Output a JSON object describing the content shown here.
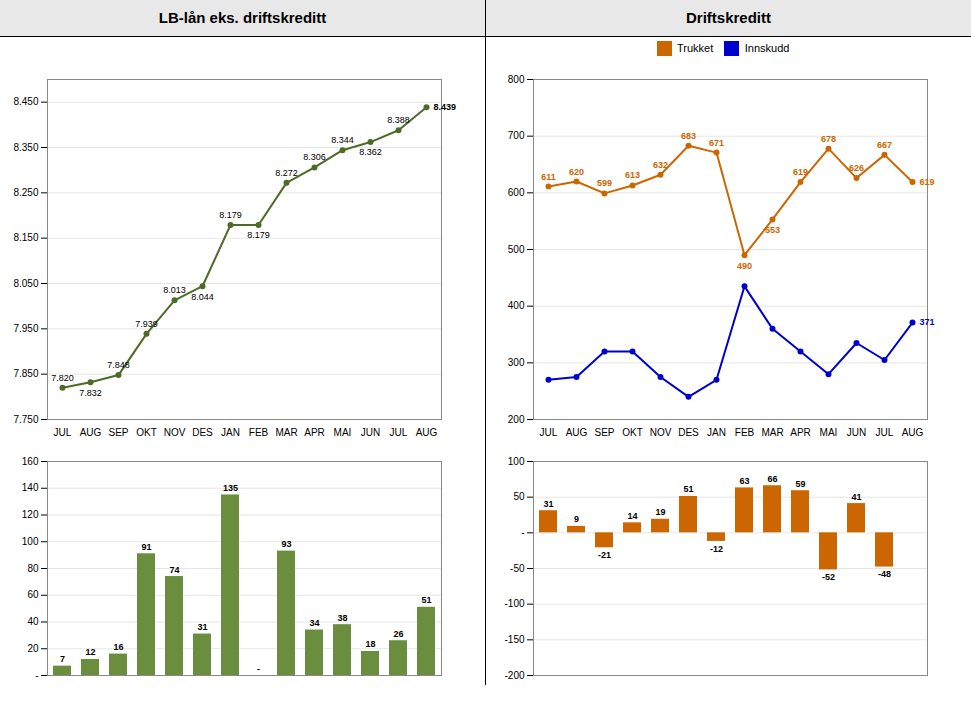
{
  "chart_data": [
    {
      "type": "line",
      "title": "LB-lån eks. driftskreditt",
      "categories": [
        "JUL",
        "AUG",
        "SEP",
        "OKT",
        "NOV",
        "DES",
        "JAN",
        "FEB",
        "MAR",
        "APR",
        "MAI",
        "JUN",
        "JUL",
        "AUG"
      ],
      "values": [
        7.82,
        7.832,
        7.848,
        7.939,
        8.013,
        8.044,
        8.179,
        8.179,
        8.272,
        8.306,
        8.344,
        8.362,
        8.388,
        8.439
      ],
      "value_labels": [
        "7.820",
        "7.832",
        "7.848",
        "7.939",
        "8.013",
        "8.044",
        "8.179",
        "8.179",
        "8.272",
        "8.306",
        "8.344",
        "8.362",
        "8.388",
        "8.439"
      ],
      "color": "#4d6b27",
      "marker": "circle",
      "ylim": [
        7.75,
        8.5
      ],
      "yticks": [
        {
          "value": 7.75,
          "label": "7.750"
        },
        {
          "value": 7.85,
          "label": "7.850"
        },
        {
          "value": 7.95,
          "label": "7.950"
        },
        {
          "value": 8.05,
          "label": "8.050"
        },
        {
          "value": 8.15,
          "label": "8.150"
        },
        {
          "value": 8.25,
          "label": "8.250"
        },
        {
          "value": 8.35,
          "label": "8.350"
        },
        {
          "value": 8.45,
          "label": "8.450"
        }
      ],
      "grid": true,
      "data_labels": true
    },
    {
      "type": "bar",
      "categories": [
        "JUL",
        "AUG",
        "SEP",
        "OKT",
        "NOV",
        "DES",
        "JAN",
        "FEB",
        "MAR",
        "APR",
        "MAI",
        "JUN",
        "JUL",
        "AUG"
      ],
      "values": [
        7,
        12,
        16,
        91,
        74,
        31,
        135,
        0,
        93,
        34,
        38,
        18,
        26,
        51
      ],
      "value_labels": [
        "7",
        "12",
        "16",
        "91",
        "74",
        "31",
        "135",
        "-",
        "93",
        "34",
        "38",
        "18",
        "26",
        "51"
      ],
      "color": "#6b8e3e",
      "ylim": [
        0,
        160
      ],
      "yticks": [
        {
          "value": 0,
          "label": "-"
        },
        20,
        40,
        60,
        80,
        100,
        120,
        140,
        160
      ],
      "grid": true,
      "data_labels": true,
      "tick_labels": "y"
    },
    {
      "type": "line",
      "title": "Driftskreditt",
      "categories": [
        "JUL",
        "AUG",
        "SEP",
        "OKT",
        "NOV",
        "DES",
        "JAN",
        "FEB",
        "MAR",
        "APR",
        "MAI",
        "JUN",
        "JUL",
        "AUG"
      ],
      "series": [
        {
          "name": "Trukket",
          "color": "#cc6600",
          "marker": "circle",
          "values": [
            611,
            620,
            599,
            613,
            632,
            683,
            671,
            490,
            553,
            619,
            678,
            626,
            667,
            619
          ]
        },
        {
          "name": "Innskudd",
          "color": "#0000cc",
          "marker": "circle",
          "values": [
            270,
            275,
            320,
            320,
            275,
            240,
            270,
            435,
            360,
            320,
            280,
            335,
            305,
            371
          ],
          "value_labels": [
            null,
            null,
            null,
            null,
            null,
            null,
            null,
            null,
            null,
            null,
            null,
            null,
            null,
            "371"
          ]
        }
      ],
      "ylim": [
        200,
        800
      ],
      "yticks": [
        200,
        300,
        400,
        500,
        600,
        700,
        800
      ],
      "grid": true,
      "legend": "top",
      "data_labels": true
    },
    {
      "type": "bar",
      "categories": [
        "JUL",
        "AUG",
        "SEP",
        "OKT",
        "NOV",
        "DES",
        "JAN",
        "FEB",
        "MAR",
        "APR",
        "MAI",
        "JUN",
        "JUL",
        "AUG"
      ],
      "values": [
        31,
        9,
        -21,
        14,
        19,
        51,
        -12,
        63,
        66,
        59,
        -52,
        41,
        -48,
        null
      ],
      "color": "#cc6600",
      "ylim": [
        -200,
        100
      ],
      "yticks": [
        -200,
        -150,
        -100,
        -50,
        {
          "value": 0,
          "label": "-"
        },
        50,
        100
      ],
      "grid": true,
      "data_labels": true,
      "tick_labels": "y"
    }
  ]
}
